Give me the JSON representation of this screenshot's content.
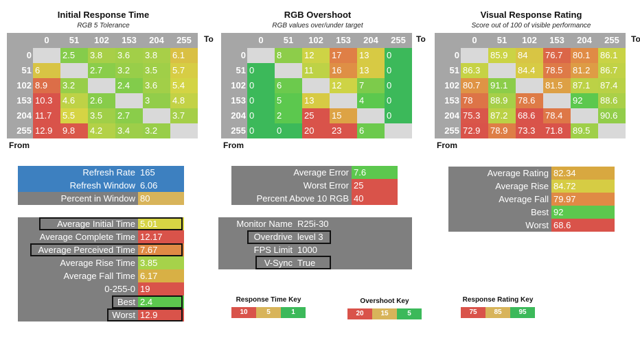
{
  "chart_data": [
    {
      "type": "heatmap",
      "title": "Initial Response Time",
      "subtitle": "RGB 5 Tolerance",
      "xlabel": "To",
      "ylabel": "From",
      "x": [
        "0",
        "51",
        "102",
        "153",
        "204",
        "255"
      ],
      "y": [
        "0",
        "51",
        "102",
        "153",
        "204",
        "255"
      ],
      "values": [
        [
          null,
          2.5,
          3.8,
          3.6,
          3.8,
          6.1
        ],
        [
          6,
          null,
          2.7,
          3.2,
          3.5,
          5.7
        ],
        [
          8.9,
          3.2,
          null,
          2.4,
          3.6,
          5.4
        ],
        [
          10.3,
          4.6,
          2.6,
          null,
          3,
          4.8
        ],
        [
          11.7,
          5.5,
          3.5,
          2.7,
          null,
          3.7
        ],
        [
          12.9,
          9.8,
          4.2,
          3.4,
          3.2,
          null
        ]
      ],
      "color_scale": {
        "low_is_good": true,
        "stops": [
          1,
          5,
          10
        ]
      }
    },
    {
      "type": "heatmap",
      "title": "RGB Overshoot",
      "subtitle": "RGB values over/under target",
      "xlabel": "To",
      "ylabel": "From",
      "x": [
        "0",
        "51",
        "102",
        "153",
        "204",
        "255"
      ],
      "y": [
        "0",
        "51",
        "102",
        "153",
        "204",
        "255"
      ],
      "values": [
        [
          null,
          8,
          12,
          17,
          13,
          0
        ],
        [
          0,
          null,
          11,
          16,
          13,
          0
        ],
        [
          0,
          6,
          null,
          12,
          7,
          0
        ],
        [
          0,
          5,
          13,
          null,
          4,
          0
        ],
        [
          0,
          2,
          25,
          15,
          null,
          0
        ],
        [
          0,
          0,
          20,
          23,
          6,
          null
        ]
      ],
      "color_scale": {
        "low_is_good": true,
        "stops": [
          5,
          15,
          20
        ]
      }
    },
    {
      "type": "heatmap",
      "title": "Visual Response Rating",
      "subtitle": "Score out of 100 of visible performance",
      "xlabel": "To",
      "ylabel": "From",
      "x": [
        "0",
        "51",
        "102",
        "153",
        "204",
        "255"
      ],
      "y": [
        "0",
        "51",
        "102",
        "153",
        "204",
        "255"
      ],
      "values": [
        [
          null,
          85.9,
          84,
          76.7,
          80.1,
          86.1
        ],
        [
          86.3,
          null,
          84.4,
          78.5,
          81.2,
          86.7
        ],
        [
          80.7,
          91.1,
          null,
          81.5,
          87.1,
          87.4
        ],
        [
          78,
          88.9,
          78.6,
          null,
          92,
          88.6
        ],
        [
          75.3,
          87.2,
          68.6,
          78.4,
          null,
          90.6
        ],
        [
          72.9,
          78.9,
          73.3,
          71.8,
          89.5,
          null
        ]
      ],
      "color_scale": {
        "low_is_good": false,
        "stops": [
          75,
          85,
          95
        ]
      }
    }
  ],
  "colors": {
    "red": "#d9534a",
    "orange": "#e08a45",
    "gold": "#d8b45a",
    "yellow": "#d6d444",
    "lime": "#a6d24a",
    "green": "#5cc84e",
    "darkgreen": "#3cb95a",
    "blue": "#3d80c0",
    "gray": "#7f7f7f"
  },
  "refresh_box": {
    "rows": [
      {
        "label": "Refresh Rate",
        "value": "165"
      },
      {
        "label": "Refresh Window",
        "value": "6.06"
      },
      {
        "label": "Percent in Window",
        "value": "80"
      }
    ]
  },
  "response_stats": {
    "rows": [
      {
        "label": "Average Initial Time",
        "value": "5.01",
        "color": "#d6d444",
        "outlined": true
      },
      {
        "label": "Average Complete Time",
        "value": "12.17",
        "color": "#d9534a",
        "outlined": false
      },
      {
        "label": "Average Perceived Time",
        "value": "7.67",
        "color": "#e08a45",
        "outlined": true
      },
      {
        "label": "Average Rise Time",
        "value": "3.85",
        "color": "#a6d24a",
        "outlined": false
      },
      {
        "label": "Average Fall Time",
        "value": "6.17",
        "color": "#d8b045",
        "outlined": false
      },
      {
        "label": "0-255-0",
        "value": "19",
        "color": "#d9534a",
        "outlined": false
      },
      {
        "label": "Best",
        "value": "2.4",
        "color": "#5cc84e",
        "outlined": true
      },
      {
        "label": "Worst",
        "value": "12.9",
        "color": "#d9534a",
        "outlined": true
      }
    ]
  },
  "overshoot_stats": {
    "rows": [
      {
        "label": "Average Error",
        "value": "7.6",
        "color": "#5cc84e"
      },
      {
        "label": "Worst Error",
        "value": "25",
        "color": "#d9534a"
      },
      {
        "label": "Percent Above 10 RGB",
        "value": "40",
        "color": "#d9534a"
      }
    ]
  },
  "monitor_info": {
    "rows": [
      {
        "label": "Monitor Name",
        "value": "R25i-30"
      },
      {
        "label": "Overdrive",
        "value": "level 3"
      },
      {
        "label": "FPS Limit",
        "value": "1000"
      },
      {
        "label": "V-Sync",
        "value": "True"
      }
    ]
  },
  "rating_stats": {
    "rows": [
      {
        "label": "Average Rating",
        "value": "82.34",
        "color": "#d8a840"
      },
      {
        "label": "Average Rise",
        "value": "84.72",
        "color": "#d6cc44"
      },
      {
        "label": "Average Fall",
        "value": "79.97",
        "color": "#e08a45"
      },
      {
        "label": "Best",
        "value": "92",
        "color": "#5cc84e"
      },
      {
        "label": "Worst",
        "value": "68.6",
        "color": "#d9534a"
      }
    ]
  },
  "keys": [
    {
      "title": "Response Time Key",
      "cells": [
        {
          "label": "10",
          "color": "#d9534a"
        },
        {
          "label": "5",
          "color": "#d8b45a"
        },
        {
          "label": "1",
          "color": "#3cb95a"
        }
      ]
    },
    {
      "title": "Overshoot Key",
      "cells": [
        {
          "label": "20",
          "color": "#d9534a"
        },
        {
          "label": "15",
          "color": "#d8b45a"
        },
        {
          "label": "5",
          "color": "#3cb95a"
        }
      ]
    },
    {
      "title": "Response Rating Key",
      "cells": [
        {
          "label": "75",
          "color": "#d9534a"
        },
        {
          "label": "85",
          "color": "#d8b45a"
        },
        {
          "label": "95",
          "color": "#3cb95a"
        }
      ]
    }
  ]
}
